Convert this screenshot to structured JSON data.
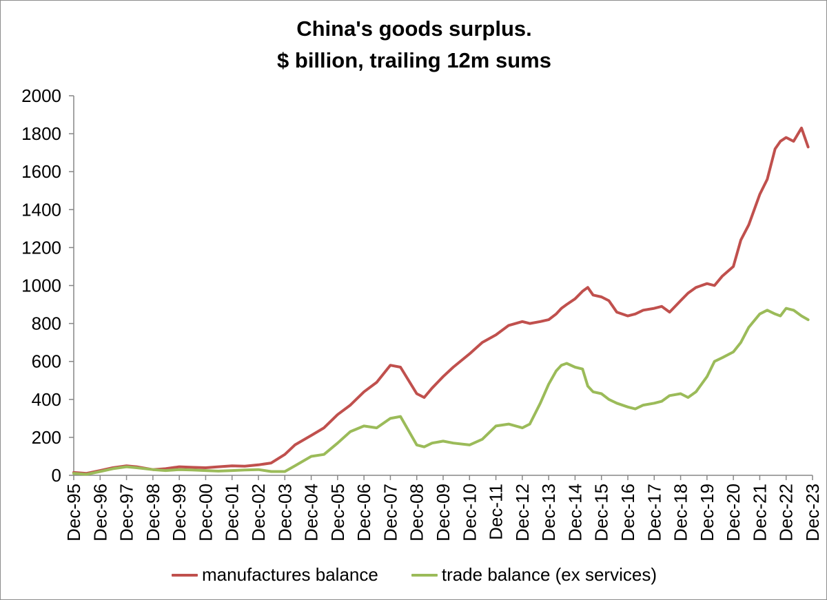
{
  "chart_data": {
    "type": "line",
    "title_line1": "China's goods surplus.",
    "title_line2": "$ billion, trailing 12m sums",
    "ylim": [
      0,
      2000
    ],
    "yticks": [
      "0",
      "200",
      "400",
      "600",
      "800",
      "1000",
      "1200",
      "1400",
      "1600",
      "1800",
      "2000"
    ],
    "xlim": [
      1995.917,
      2023.917
    ],
    "xticks": [
      "Dec-95",
      "Dec-96",
      "Dec-97",
      "Dec-98",
      "Dec-99",
      "Dec-00",
      "Dec-01",
      "Dec-02",
      "Dec-03",
      "Dec-04",
      "Dec-05",
      "Dec-06",
      "Dec-07",
      "Dec-08",
      "Dec-09",
      "Dec-10",
      "Dec-11",
      "Dec-12",
      "Dec-13",
      "Dec-14",
      "Dec-15",
      "Dec-16",
      "Dec-17",
      "Dec-18",
      "Dec-19",
      "Dec-20",
      "Dec-21",
      "Dec-22",
      "Dec-23"
    ],
    "series": [
      {
        "name": "manufactures balance",
        "color": "#c0504d",
        "x": [
          1995.917,
          1996.4,
          1996.917,
          1997.4,
          1997.917,
          1998.3,
          1998.917,
          1999.4,
          1999.917,
          2000.4,
          2000.917,
          2001.4,
          2001.917,
          2002.4,
          2002.917,
          2003.4,
          2003.917,
          2004.3,
          2004.917,
          2005.4,
          2005.917,
          2006.4,
          2006.917,
          2007.4,
          2007.917,
          2008.3,
          2008.917,
          2009.2,
          2009.5,
          2009.917,
          2010.3,
          2010.917,
          2011.4,
          2011.917,
          2012.4,
          2012.917,
          2013.2,
          2013.6,
          2013.917,
          2014.2,
          2014.4,
          2014.6,
          2014.917,
          2015.2,
          2015.4,
          2015.6,
          2015.917,
          2016.2,
          2016.5,
          2016.917,
          2017.2,
          2017.5,
          2017.917,
          2018.2,
          2018.5,
          2018.917,
          2019.2,
          2019.5,
          2019.917,
          2020.2,
          2020.5,
          2020.917,
          2021.2,
          2021.5,
          2021.917,
          2022.2,
          2022.5,
          2022.7,
          2022.917,
          2023.2,
          2023.5,
          2023.75
        ],
        "values": [
          15,
          10,
          25,
          40,
          50,
          45,
          30,
          35,
          45,
          42,
          40,
          45,
          50,
          48,
          55,
          65,
          110,
          160,
          210,
          250,
          320,
          370,
          440,
          490,
          580,
          570,
          430,
          410,
          460,
          520,
          570,
          640,
          700,
          740,
          790,
          810,
          800,
          810,
          820,
          850,
          880,
          900,
          930,
          970,
          990,
          950,
          940,
          920,
          860,
          840,
          850,
          870,
          880,
          890,
          860,
          920,
          960,
          990,
          1010,
          1000,
          1050,
          1100,
          1240,
          1320,
          1480,
          1560,
          1720,
          1760,
          1780,
          1760,
          1830,
          1730
        ]
      },
      {
        "name": "trade balance (ex services)",
        "color": "#9bbb59",
        "x": [
          1995.917,
          1996.4,
          1996.917,
          1997.4,
          1997.917,
          1998.3,
          1998.917,
          1999.4,
          1999.917,
          2000.4,
          2000.917,
          2001.4,
          2001.917,
          2002.4,
          2002.917,
          2003.4,
          2003.917,
          2004.3,
          2004.917,
          2005.4,
          2005.917,
          2006.4,
          2006.917,
          2007.4,
          2007.917,
          2008.3,
          2008.917,
          2009.2,
          2009.5,
          2009.917,
          2010.3,
          2010.917,
          2011.4,
          2011.917,
          2012.4,
          2012.917,
          2013.2,
          2013.6,
          2013.917,
          2014.2,
          2014.4,
          2014.6,
          2014.917,
          2015.2,
          2015.4,
          2015.6,
          2015.917,
          2016.2,
          2016.5,
          2016.917,
          2017.2,
          2017.5,
          2017.917,
          2018.2,
          2018.5,
          2018.917,
          2019.2,
          2019.5,
          2019.917,
          2020.2,
          2020.5,
          2020.917,
          2021.2,
          2021.5,
          2021.917,
          2022.2,
          2022.5,
          2022.7,
          2022.917,
          2023.2,
          2023.5,
          2023.75
        ],
        "values": [
          10,
          5,
          20,
          35,
          45,
          40,
          30,
          25,
          30,
          28,
          25,
          22,
          25,
          28,
          30,
          20,
          20,
          50,
          100,
          110,
          170,
          230,
          260,
          250,
          300,
          310,
          160,
          150,
          170,
          180,
          170,
          160,
          190,
          260,
          270,
          250,
          270,
          380,
          480,
          550,
          580,
          590,
          570,
          560,
          470,
          440,
          430,
          400,
          380,
          360,
          350,
          370,
          380,
          390,
          420,
          430,
          410,
          440,
          520,
          600,
          620,
          650,
          700,
          780,
          850,
          870,
          850,
          840,
          880,
          870,
          840,
          820
        ]
      }
    ]
  }
}
